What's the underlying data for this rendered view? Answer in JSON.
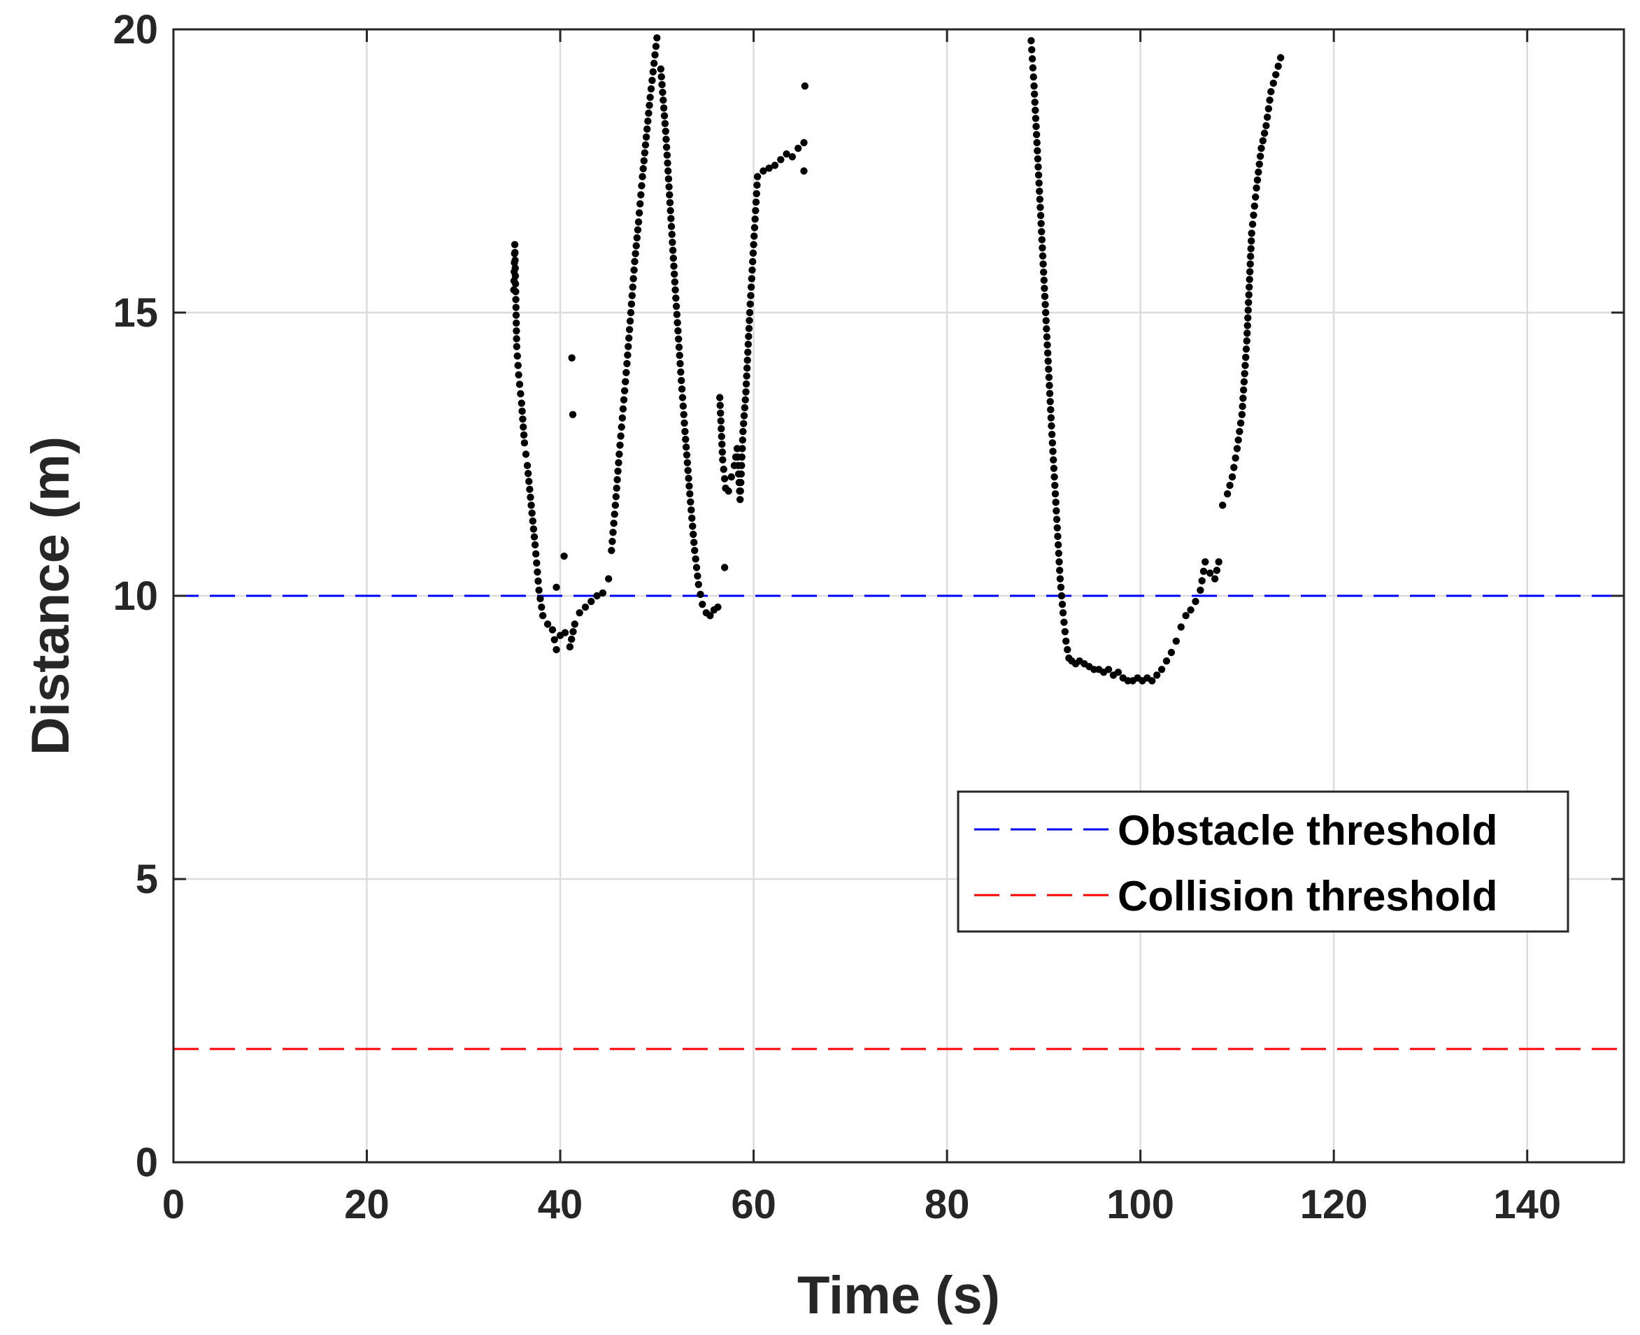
{
  "chart_data": {
    "type": "scatter",
    "xlabel": "Time (s)",
    "ylabel": "Distance (m)",
    "xlim": [
      0,
      150
    ],
    "ylim": [
      0,
      20
    ],
    "xticks": [
      0,
      20,
      40,
      60,
      80,
      100,
      120,
      140
    ],
    "yticks": [
      0,
      5,
      10,
      15,
      20
    ],
    "grid": true,
    "legend_position": "right-middle",
    "colors": {
      "points": "#000000",
      "obstacle": "#0000ff",
      "collision": "#ff0000",
      "grid": "#dcdcdc",
      "axis": "#262626"
    },
    "thresholds": [
      {
        "name": "Obstacle threshold",
        "value": 10,
        "color": "#0000ff",
        "style": "dashed"
      },
      {
        "name": "Collision threshold",
        "value": 2,
        "color": "#ff0000",
        "style": "dashed"
      }
    ],
    "series": [
      {
        "name": "Distance",
        "segments": [
          {
            "x": [
              35.2,
              35.3,
              35.5,
              35.7,
              36.0,
              36.3,
              36.6,
              37.0,
              37.4,
              37.8,
              38.2,
              38.7,
              39.2,
              39.6,
              40.0,
              40.5,
              41.0,
              41.5,
              42.0,
              42.6,
              43.2,
              43.8,
              44.4,
              45.0
            ],
            "y": [
              15.4,
              16.2,
              14.4,
              13.9,
              13.4,
              12.7,
              12.3,
              11.6,
              10.9,
              10.1,
              9.65,
              9.5,
              9.4,
              9.05,
              9.3,
              9.35,
              9.1,
              9.5,
              9.7,
              9.8,
              9.9,
              10.0,
              10.05,
              10.3
            ]
          },
          {
            "x": [
              45.3,
              45.7,
              46.1,
              46.5,
              46.9,
              47.3,
              47.7,
              48.1,
              48.5,
              48.9,
              49.3,
              49.7,
              50.0
            ],
            "y": [
              10.8,
              11.6,
              12.5,
              13.3,
              14.1,
              15.0,
              15.9,
              16.6,
              17.4,
              18.1,
              18.8,
              19.4,
              19.85
            ]
          },
          {
            "x": [
              50.4,
              50.9,
              51.4,
              51.9,
              52.4,
              52.9,
              53.4,
              53.9,
              54.3,
              54.7,
              55.1,
              55.5,
              55.9,
              56.3
            ],
            "y": [
              19.3,
              18.2,
              16.8,
              15.4,
              14.1,
              12.9,
              11.8,
              10.8,
              10.2,
              9.85,
              9.7,
              9.65,
              9.75,
              9.8
            ]
          },
          {
            "x": [
              56.5,
              56.8,
              57.1,
              57.4,
              57.7,
              58.0,
              58.3,
              58.6,
              58.9,
              59.2,
              59.6,
              60.0,
              60.4,
              61.0,
              61.6,
              62.2,
              62.8,
              63.4,
              64.0,
              64.6,
              65.2
            ],
            "y": [
              13.5,
              12.4,
              11.9,
              11.85,
              12.1,
              12.3,
              12.6,
              11.7,
              12.9,
              13.6,
              15.0,
              16.2,
              17.4,
              17.5,
              17.55,
              17.6,
              17.7,
              17.8,
              17.75,
              17.9,
              18.0
            ]
          },
          {
            "x": [
              88.7,
              89.0,
              89.3,
              89.6,
              89.9,
              90.2,
              90.5,
              90.8,
              91.1,
              91.4,
              91.7,
              92.0,
              92.3,
              92.6,
              92.9,
              93.3
            ],
            "y": [
              19.8,
              19.0,
              18.0,
              17.0,
              16.0,
              15.0,
              14.0,
              13.0,
              12.1,
              11.2,
              10.3,
              9.7,
              9.2,
              8.9,
              8.85,
              8.8
            ]
          },
          {
            "x": [
              93.7,
              94.2,
              94.7,
              95.2,
              95.7,
              96.2,
              96.7,
              97.2,
              97.7,
              98.2,
              98.7,
              99.2,
              99.7,
              100.2,
              100.7,
              101.2,
              101.7,
              102.2,
              102.7,
              103.2,
              103.7,
              104.2,
              104.7,
              105.2,
              105.7,
              106.2,
              106.7,
              107.2,
              107.7,
              108.1
            ],
            "y": [
              8.85,
              8.8,
              8.75,
              8.7,
              8.7,
              8.65,
              8.7,
              8.6,
              8.65,
              8.55,
              8.5,
              8.5,
              8.55,
              8.5,
              8.55,
              8.5,
              8.6,
              8.7,
              8.85,
              9.0,
              9.2,
              9.45,
              9.65,
              9.75,
              9.9,
              10.1,
              10.6,
              10.4,
              10.3,
              10.6
            ]
          },
          {
            "x": [
              108.5,
              109.0,
              109.5,
              110.0,
              110.5,
              111.0,
              111.5,
              112.0,
              112.5,
              113.0,
              113.5,
              114.0,
              114.5
            ],
            "y": [
              11.6,
              11.8,
              12.1,
              12.6,
              13.2,
              14.5,
              16.4,
              17.2,
              17.9,
              18.3,
              18.9,
              19.2,
              19.5
            ]
          }
        ],
        "outliers": {
          "x": [
            40.4,
            41.2,
            41.3,
            39.6,
            57.0,
            65.2,
            65.3
          ],
          "y": [
            10.7,
            14.2,
            13.2,
            10.15,
            10.5,
            17.5,
            19.0
          ]
        }
      }
    ]
  }
}
